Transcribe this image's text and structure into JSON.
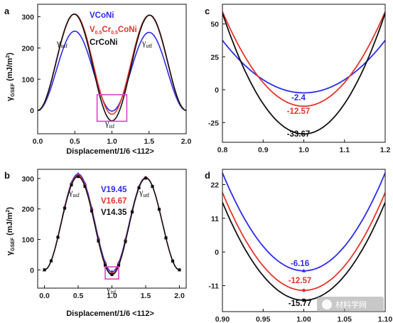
{
  "panels": {
    "a": "a",
    "b": "b",
    "c": "c",
    "d": "d"
  },
  "labels": {
    "xlabel": "Displacement/1/6 <112>",
    "ylabel": "γGSEF (mJ/m²)",
    "gamma_usf": "γusf",
    "gamma_utf": "γutf",
    "gamma_isf": "γisf"
  },
  "colors": {
    "blue": "#2b2bf0",
    "red": "#e8332a",
    "black": "#111111",
    "magenta": "#e040c8"
  },
  "watermark": "材料学网",
  "chart_data": [
    {
      "id": "a",
      "type": "line",
      "xlabel": "Displacement/1/6 <112>",
      "ylabel": "γGSEF (mJ/m²)",
      "xlim": [
        0.0,
        2.0
      ],
      "ylim": [
        -75,
        340
      ],
      "xticks": [
        "0.0",
        "0.5",
        "1.0",
        "1.5",
        "2.0"
      ],
      "yticks": [
        "0",
        "100",
        "200",
        "300"
      ],
      "legend": "top-right",
      "series": [
        {
          "name": "VCoNi",
          "color": "#2b2bf0",
          "usf": 255,
          "isf": -2.4,
          "utf": 250
        },
        {
          "name": "V0.5Cr0.5CoNi",
          "color": "#e8332a",
          "usf": 315,
          "isf": -12.57,
          "utf": 305
        },
        {
          "name": "CrCoNi",
          "color": "#111111",
          "usf": 325,
          "isf": -33.67,
          "utf": 305
        }
      ],
      "annotations": [
        "γusf",
        "γutf",
        "γisf"
      ],
      "highlight_box_x": [
        0.8,
        1.2
      ],
      "highlight_box_y": [
        -35,
        50
      ]
    },
    {
      "id": "c",
      "type": "line",
      "xlim": [
        0.8,
        1.2
      ],
      "ylim": [
        -40,
        65
      ],
      "xticks": [
        "0.8",
        "0.9",
        "1.0",
        "1.1",
        "1.2"
      ],
      "yticks": [
        "-25",
        "0",
        "25",
        "50"
      ],
      "series": [
        {
          "color": "#2b2bf0",
          "min": -2.4
        },
        {
          "color": "#e8332a",
          "min": -12.57
        },
        {
          "color": "#111111",
          "min": -33.67
        }
      ],
      "data_labels": [
        "-2.4",
        "-12.57",
        "-33.67"
      ]
    },
    {
      "id": "b",
      "type": "line",
      "xlabel": "Displacement/1/6 <112>",
      "ylabel": "γGSEF (mJ/m²)",
      "xlim": [
        -0.1,
        2.1
      ],
      "ylim": [
        -60,
        330
      ],
      "xticks": [
        "0.0",
        "0.5",
        "1.0",
        "1.5",
        "2.0"
      ],
      "yticks": [
        "0",
        "100",
        "200",
        "300"
      ],
      "legend": "top-center",
      "series": [
        {
          "name": "V19.45",
          "color": "#2b2bf0",
          "usf": 318,
          "isf": -6.16,
          "utf": 303
        },
        {
          "name": "V16.67",
          "color": "#e8332a",
          "usf": 316,
          "isf": -12.57,
          "utf": 302
        },
        {
          "name": "V14.35",
          "color": "#111111",
          "usf": 314,
          "isf": -15.77,
          "utf": 301
        }
      ],
      "markers": "triangle/circle/square along curves",
      "annotations": [
        "γusf",
        "γutf",
        "γisf"
      ]
    },
    {
      "id": "d",
      "type": "line",
      "xlim": [
        0.9,
        1.1
      ],
      "ylim": [
        -19.5,
        27
      ],
      "xticks": [
        "0.90",
        "0.95",
        "1.00",
        "1.05",
        "1.10"
      ],
      "yticks": [
        "-11",
        "0",
        "11",
        "22"
      ],
      "series": [
        {
          "color": "#2b2bf0",
          "min": -6.16
        },
        {
          "color": "#e8332a",
          "min": -12.57
        },
        {
          "color": "#111111",
          "min": -15.77
        }
      ],
      "data_labels": [
        "-6.16",
        "-12.57",
        "-15.77"
      ]
    }
  ]
}
